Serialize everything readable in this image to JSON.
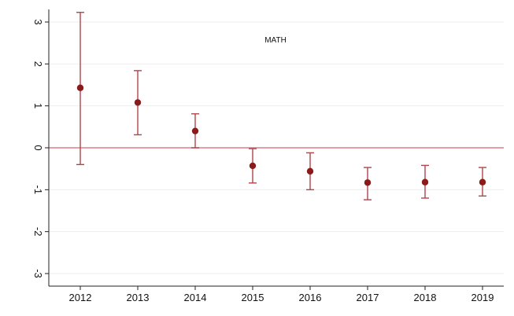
{
  "chart_data": {
    "type": "scatter",
    "subtype": "point-estimates-with-confidence-intervals",
    "title": "",
    "xlabel": "",
    "ylabel": "",
    "annotation": "MATH",
    "x": [
      "2012",
      "2013",
      "2014",
      "2015",
      "2016",
      "2017",
      "2018",
      "2019"
    ],
    "series": [
      {
        "estimate": [
          1.43,
          1.08,
          0.4,
          -0.43,
          -0.56,
          -0.83,
          -0.82,
          -0.82
        ],
        "ci_low": [
          -0.4,
          0.31,
          0.0,
          -0.84,
          -1.0,
          -1.24,
          -1.2,
          -1.15
        ],
        "ci_high": [
          3.23,
          1.84,
          0.81,
          -0.02,
          -0.12,
          -0.47,
          -0.42,
          -0.47
        ]
      }
    ],
    "ylim": [
      -3.3,
      3.3
    ],
    "yticks": [
      3,
      2,
      1,
      0,
      -1,
      -2,
      -3
    ],
    "ytick_labels": [
      "3",
      "2",
      "1",
      "0",
      "-1",
      "-2",
      "-3"
    ],
    "reference_line": {
      "y": 0,
      "color": "#e07b86"
    },
    "grid": true,
    "colors": {
      "point": "#8b1a1a",
      "whisker": "#b0454a",
      "axis": "#222222",
      "grid": "#eeeeee"
    }
  }
}
